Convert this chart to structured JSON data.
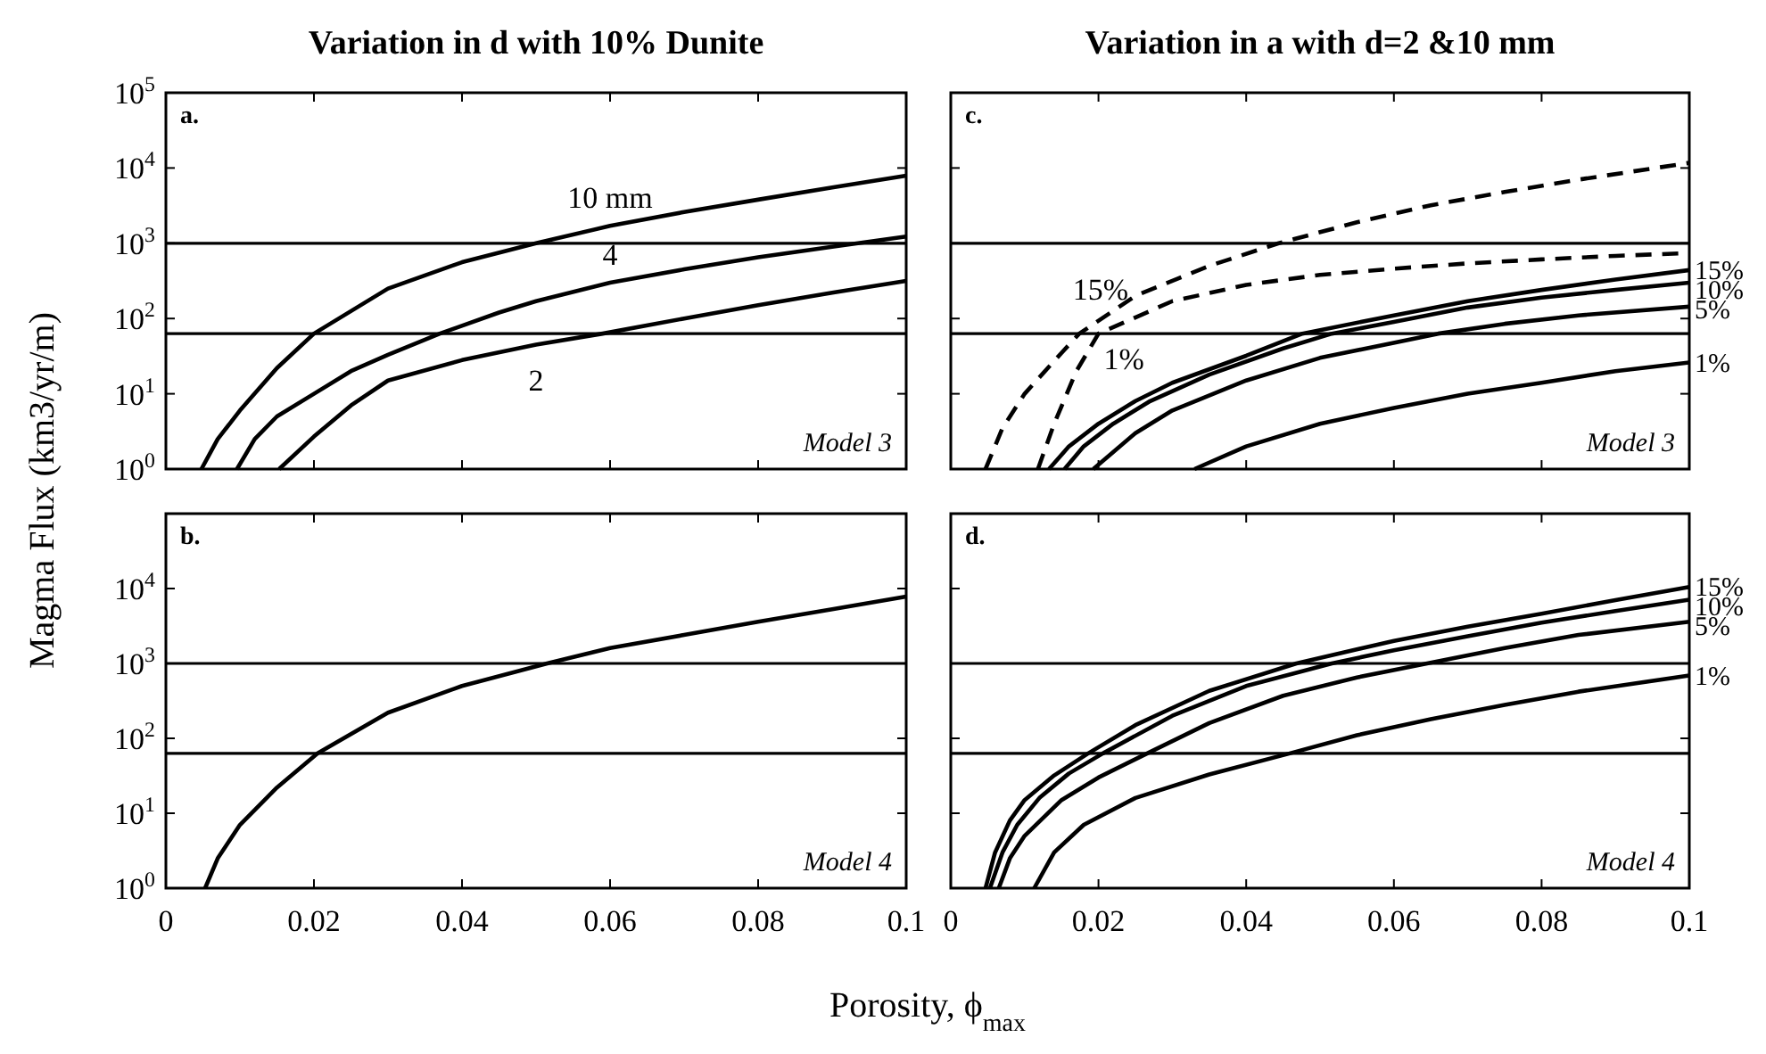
{
  "chart_data": [
    {
      "type": "line",
      "title": "Variation in d with 10% Dunite",
      "ylabel": "Magma Flux (km3/yr/m)",
      "log": "y",
      "xlim": [
        0,
        0.1
      ],
      "ylim": [
        1,
        100000
      ],
      "xticks": [
        0,
        0.02,
        0.04,
        0.06,
        0.08,
        0.1
      ],
      "yticks": [
        {
          "value": 1,
          "label": "10$^{0}$"
        },
        {
          "value": 10,
          "label": "10$^{1}$"
        },
        {
          "value": 100,
          "label": "10$^{2}$"
        },
        {
          "value": 1000,
          "label": "10$^{3}$"
        },
        {
          "value": 10000,
          "label": "10$^{4}$"
        },
        {
          "value": 100000,
          "label": "10$^{5}$"
        }
      ],
      "tick_labels": "y",
      "legend": false,
      "line_style": "solid",
      "ref_lines": [
        {
          "axis": "y",
          "value": 1000
        },
        {
          "axis": "y",
          "value": 63
        }
      ],
      "annotations": [
        "a.",
        "Model 3"
      ],
      "series": [
        {
          "name": "10 mm",
          "color": "#000000",
          "x": [
            0.0048,
            0.007,
            0.01,
            0.015,
            0.02,
            0.03,
            0.04,
            0.05,
            0.06,
            0.07,
            0.08,
            0.09,
            0.1
          ],
          "values": [
            1,
            2.5,
            6,
            22,
            63,
            250,
            560,
            1000,
            1700,
            2600,
            3800,
            5500,
            7900
          ]
        },
        {
          "name": "4",
          "color": "#000000",
          "x": [
            0.0096,
            0.012,
            0.015,
            0.02,
            0.025,
            0.03,
            0.037,
            0.045,
            0.05,
            0.06,
            0.07,
            0.08,
            0.09,
            0.1
          ],
          "values": [
            1,
            2.5,
            5,
            10,
            20,
            33,
            63,
            120,
            170,
            300,
            450,
            650,
            900,
            1230
          ]
        },
        {
          "name": "2",
          "color": "#000000",
          "x": [
            0.0153,
            0.02,
            0.025,
            0.03,
            0.04,
            0.05,
            0.059,
            0.07,
            0.08,
            0.09,
            0.1
          ],
          "values": [
            1,
            2.7,
            7,
            15,
            28,
            45,
            63,
            100,
            150,
            220,
            316
          ]
        }
      ]
    },
    {
      "type": "line",
      "title": "Variation in a with d=2 &10 mm",
      "log": "y",
      "xlim": [
        0,
        0.1
      ],
      "ylim": [
        1,
        100000
      ],
      "xticks": [
        0,
        0.02,
        0.04,
        0.06,
        0.08,
        0.1
      ],
      "yticks": [
        1,
        10,
        100,
        1000,
        10000,
        100000
      ],
      "tick_labels": false,
      "legend": "right",
      "line_style": "solid",
      "ref_lines": [
        {
          "axis": "y",
          "value": 1000
        },
        {
          "axis": "y",
          "value": 63
        }
      ],
      "annotations": [
        "c.",
        "Model 3"
      ],
      "series": [
        {
          "name": "15%",
          "color": "#000000",
          "line_style": "dashed",
          "x": [
            0.0047,
            0.007,
            0.01,
            0.015,
            0.0174,
            0.025,
            0.035,
            0.0444,
            0.055,
            0.065,
            0.075,
            0.085,
            0.1
          ],
          "values": [
            1,
            3.5,
            10,
            35,
            63,
            200,
            500,
            1000,
            1900,
            3200,
            4800,
            7000,
            11700
          ]
        },
        {
          "name": "1%",
          "color": "#000000",
          "line_style": "dashed",
          "x": [
            0.0118,
            0.014,
            0.017,
            0.02,
            0.03,
            0.04,
            0.05,
            0.06,
            0.07,
            0.08,
            0.09,
            0.1
          ],
          "values": [
            1,
            4,
            20,
            63,
            170,
            280,
            380,
            460,
            540,
            610,
            680,
            740
          ]
        },
        {
          "name": "15%",
          "color": "#000000",
          "x": [
            0.0133,
            0.016,
            0.02,
            0.025,
            0.03,
            0.04,
            0.0476,
            0.06,
            0.07,
            0.08,
            0.09,
            0.1
          ],
          "values": [
            1,
            2,
            4,
            8,
            14,
            32,
            63,
            110,
            170,
            240,
            330,
            440
          ]
        },
        {
          "name": "10%",
          "color": "#000000",
          "x": [
            0.0154,
            0.018,
            0.022,
            0.027,
            0.035,
            0.045,
            0.0516,
            0.06,
            0.07,
            0.08,
            0.09,
            0.1
          ],
          "values": [
            1,
            2,
            4,
            8,
            18,
            40,
            63,
            90,
            140,
            190,
            240,
            300
          ]
        },
        {
          "name": "5%",
          "color": "#000000",
          "x": [
            0.0193,
            0.025,
            0.03,
            0.04,
            0.05,
            0.066,
            0.075,
            0.085,
            0.1
          ],
          "values": [
            1,
            3,
            6,
            15,
            30,
            63,
            85,
            110,
            144
          ]
        },
        {
          "name": "1%",
          "color": "#000000",
          "x": [
            0.033,
            0.04,
            0.05,
            0.06,
            0.07,
            0.08,
            0.09,
            0.1
          ],
          "values": [
            1,
            2,
            4,
            6.5,
            10,
            14,
            20,
            26
          ]
        }
      ]
    },
    {
      "type": "line",
      "xlabel": "Porosity, ϕ$_{max}$",
      "log": "y",
      "xlim": [
        0,
        0.1
      ],
      "ylim": [
        1,
        100000
      ],
      "xticks": [
        0,
        0.02,
        0.04,
        0.06,
        0.08,
        0.1
      ],
      "yticks": [
        {
          "value": 1,
          "label": "10$^{0}$"
        },
        {
          "value": 10,
          "label": "10$^{1}$"
        },
        {
          "value": 100,
          "label": "10$^{2}$"
        },
        {
          "value": 1000,
          "label": "10$^{3}$"
        },
        {
          "value": 10000,
          "label": "10$^{4}$"
        },
        {
          "value": 100000,
          "label": null
        }
      ],
      "line_style": "solid",
      "ref_lines": [
        {
          "axis": "y",
          "value": 1000
        },
        {
          "axis": "y",
          "value": 63
        }
      ],
      "annotations": [
        "b.",
        "Model 4"
      ],
      "series": [
        {
          "color": "#000000",
          "x": [
            0.0053,
            0.007,
            0.01,
            0.015,
            0.0205,
            0.03,
            0.04,
            0.0515,
            0.06,
            0.07,
            0.08,
            0.09,
            0.1
          ],
          "values": [
            1,
            2.5,
            7,
            22,
            63,
            220,
            500,
            1000,
            1600,
            2400,
            3600,
            5300,
            7800
          ]
        }
      ]
    },
    {
      "type": "line",
      "log": "y",
      "xlim": [
        0,
        0.1
      ],
      "ylim": [
        1,
        100000
      ],
      "xticks": [
        0,
        0.02,
        0.04,
        0.06,
        0.08,
        0.1
      ],
      "yticks": [
        1,
        10,
        100,
        1000,
        10000,
        100000
      ],
      "tick_labels": "x",
      "legend": "right",
      "line_style": "solid",
      "ref_lines": [
        {
          "axis": "y",
          "value": 1000
        },
        {
          "axis": "y",
          "value": 63
        }
      ],
      "annotations": [
        "d.",
        "Model 4"
      ],
      "series": [
        {
          "name": "15%",
          "color": "#000000",
          "x": [
            0.0047,
            0.006,
            0.008,
            0.01,
            0.014,
            0.0186,
            0.025,
            0.035,
            0.0468,
            0.06,
            0.07,
            0.08,
            0.09,
            0.1
          ],
          "values": [
            1,
            3,
            8,
            15,
            32,
            63,
            150,
            430,
            1000,
            2000,
            3100,
            4600,
            7000,
            10500
          ]
        },
        {
          "name": "10%",
          "color": "#000000",
          "x": [
            0.0053,
            0.007,
            0.009,
            0.012,
            0.016,
            0.0206,
            0.03,
            0.04,
            0.0516,
            0.06,
            0.07,
            0.08,
            0.09,
            0.1
          ],
          "values": [
            1,
            3,
            7,
            16,
            34,
            63,
            200,
            500,
            1000,
            1500,
            2300,
            3500,
            5000,
            7100
          ]
        },
        {
          "name": "5%",
          "color": "#000000",
          "x": [
            0.0065,
            0.008,
            0.01,
            0.015,
            0.02,
            0.0266,
            0.035,
            0.045,
            0.055,
            0.0645,
            0.075,
            0.085,
            0.1
          ],
          "values": [
            1,
            2.5,
            5,
            15,
            30,
            63,
            160,
            370,
            650,
            1000,
            1600,
            2400,
            3600
          ]
        },
        {
          "name": "1%",
          "color": "#000000",
          "x": [
            0.0113,
            0.014,
            0.018,
            0.025,
            0.035,
            0.0459,
            0.055,
            0.065,
            0.075,
            0.085,
            0.1
          ],
          "values": [
            1,
            3,
            7,
            16,
            33,
            63,
            110,
            180,
            280,
            420,
            690
          ]
        }
      ]
    }
  ]
}
